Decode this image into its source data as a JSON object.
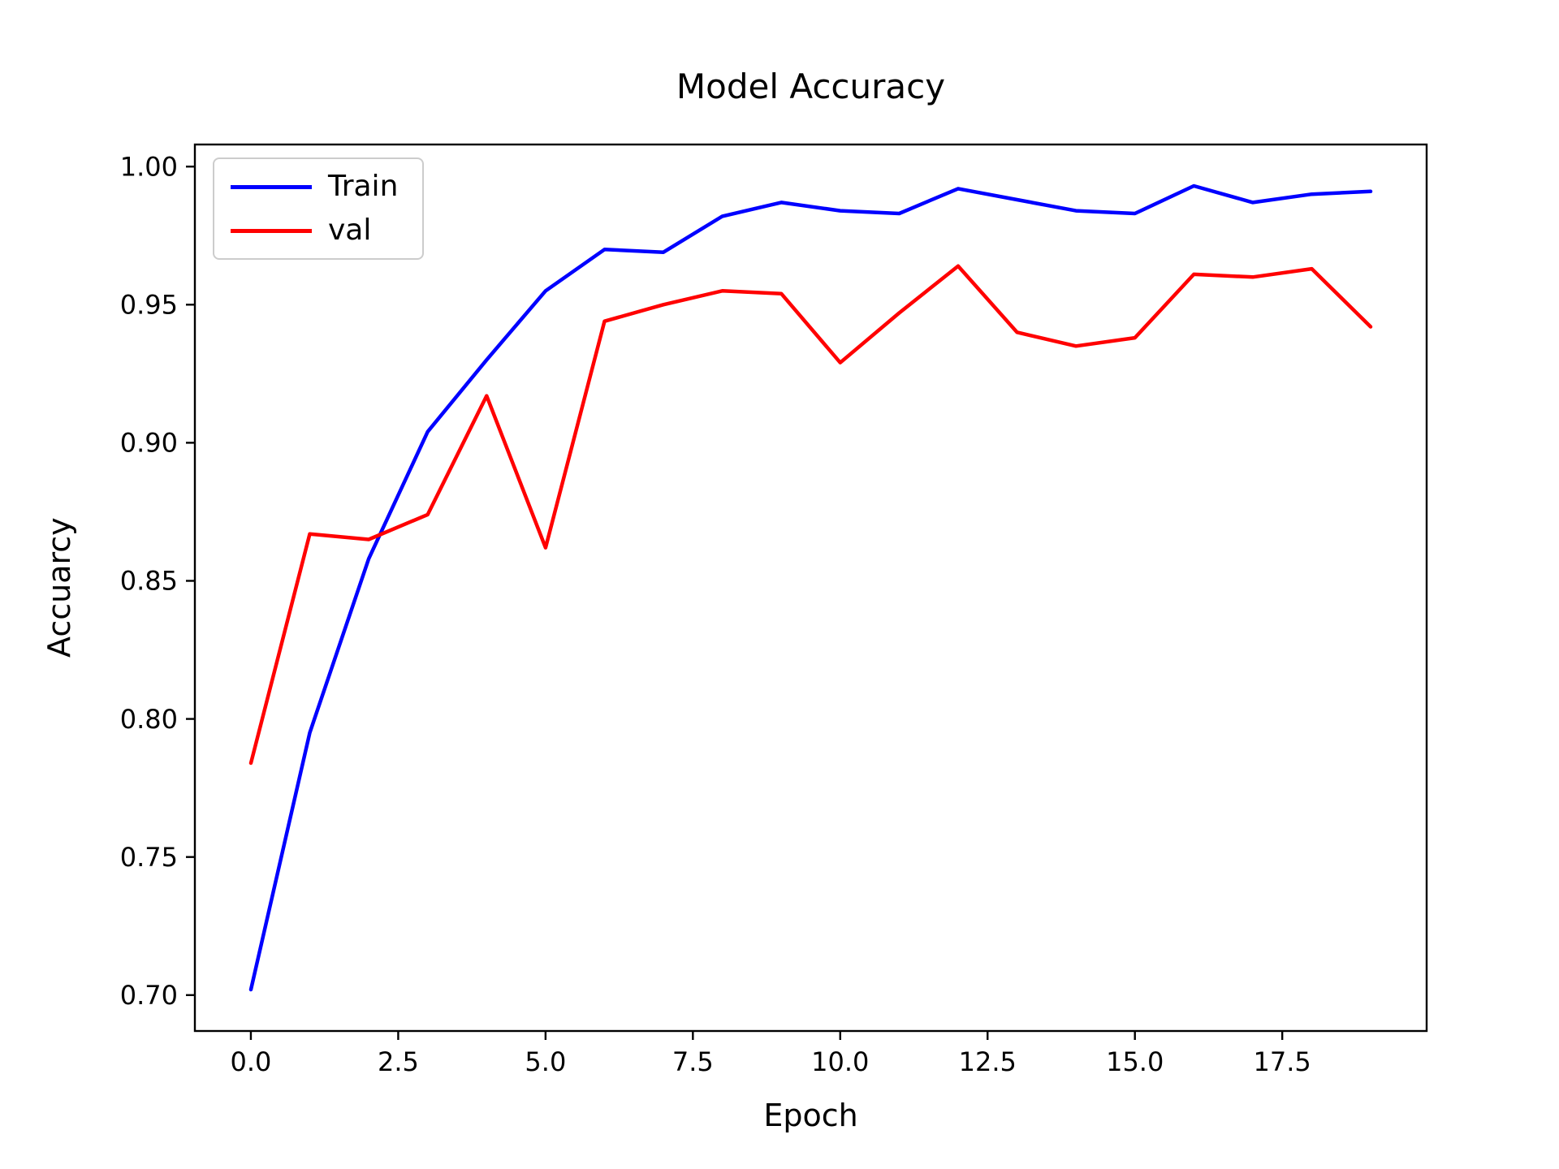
{
  "chart_data": {
    "type": "line",
    "title": "Model Accuracy",
    "xlabel": "Epoch",
    "ylabel": "Accuarcy",
    "x": [
      0,
      1,
      2,
      3,
      4,
      5,
      6,
      7,
      8,
      9,
      10,
      11,
      12,
      13,
      14,
      15,
      16,
      17,
      18,
      19
    ],
    "series": [
      {
        "name": "Train",
        "color": "#0000ff",
        "values": [
          0.702,
          0.795,
          0.858,
          0.904,
          0.93,
          0.955,
          0.97,
          0.969,
          0.982,
          0.987,
          0.984,
          0.983,
          0.992,
          0.988,
          0.984,
          0.983,
          0.993,
          0.987,
          0.99,
          0.991
        ]
      },
      {
        "name": "val",
        "color": "#ff0000",
        "values": [
          0.784,
          0.867,
          0.865,
          0.874,
          0.917,
          0.862,
          0.944,
          0.95,
          0.955,
          0.954,
          0.929,
          0.947,
          0.964,
          0.94,
          0.935,
          0.938,
          0.961,
          0.96,
          0.963,
          0.942
        ]
      }
    ],
    "xlim": [
      -0.95,
      19.95
    ],
    "ylim": [
      0.687,
      1.008
    ],
    "xticks": [
      0,
      2.5,
      5,
      7.5,
      10,
      12.5,
      15,
      17.5
    ],
    "xtick_labels": [
      "0.0",
      "2.5",
      "5.0",
      "7.5",
      "10.0",
      "12.5",
      "15.0",
      "17.5"
    ],
    "yticks": [
      0.7,
      0.75,
      0.8,
      0.85,
      0.9,
      0.95,
      1.0
    ],
    "ytick_labels": [
      "0.70",
      "0.75",
      "0.80",
      "0.85",
      "0.90",
      "0.95",
      "1.00"
    ],
    "grid": false,
    "legend_position": "upper-left",
    "legend_labels": [
      "Train",
      "val"
    ]
  }
}
